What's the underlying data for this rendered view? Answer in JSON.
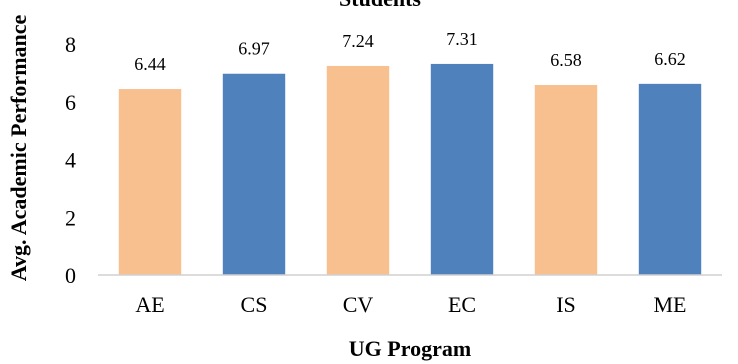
{
  "chart_data": {
    "type": "bar",
    "title": "Students",
    "xlabel": "UG Program",
    "ylabel": "Avg. Academic Performance",
    "categories": [
      "AE",
      "CS",
      "CV",
      "EC",
      "IS",
      "ME"
    ],
    "values": [
      6.44,
      6.97,
      7.24,
      7.31,
      6.58,
      6.62
    ],
    "value_labels": [
      "6.44",
      "6.97",
      "7.24",
      "7.31",
      "6.58",
      "6.62"
    ],
    "bar_colors": [
      "#f9c08f",
      "#4f81bd",
      "#f9c08f",
      "#4f81bd",
      "#f9c08f",
      "#4f81bd"
    ],
    "ylim": [
      0,
      8
    ],
    "yticks": [
      0,
      2,
      4,
      6,
      8
    ],
    "grid": false,
    "legend": false
  }
}
